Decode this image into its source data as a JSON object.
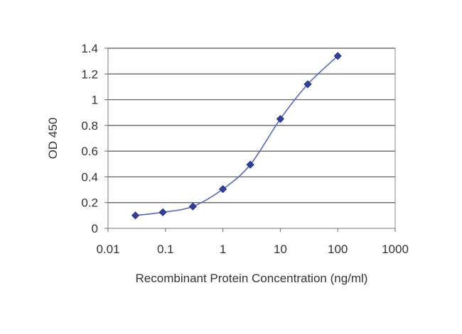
{
  "chart_data": {
    "type": "line",
    "title": "",
    "xlabel": "Recombinant Protein Concentration (ng/ml)",
    "ylabel": "OD 450",
    "x_scale": "log",
    "xlim": [
      0.01,
      1000
    ],
    "ylim": [
      0,
      1.4
    ],
    "x_ticks": [
      "0.01",
      "0.1",
      "1",
      "10",
      "100",
      "1000"
    ],
    "y_ticks": [
      "0",
      "0.2",
      "0.4",
      "0.6",
      "0.8",
      "1",
      "1.2",
      "1.4"
    ],
    "grid": "horizontal",
    "legend": "none",
    "series": [
      {
        "x": [
          0.03,
          0.09,
          0.3,
          1,
          3,
          10,
          30,
          100
        ],
        "y": [
          0.1,
          0.125,
          0.17,
          0.305,
          0.495,
          0.85,
          1.12,
          1.34
        ],
        "color": "#2e3f9e",
        "marker": "diamond"
      }
    ]
  }
}
